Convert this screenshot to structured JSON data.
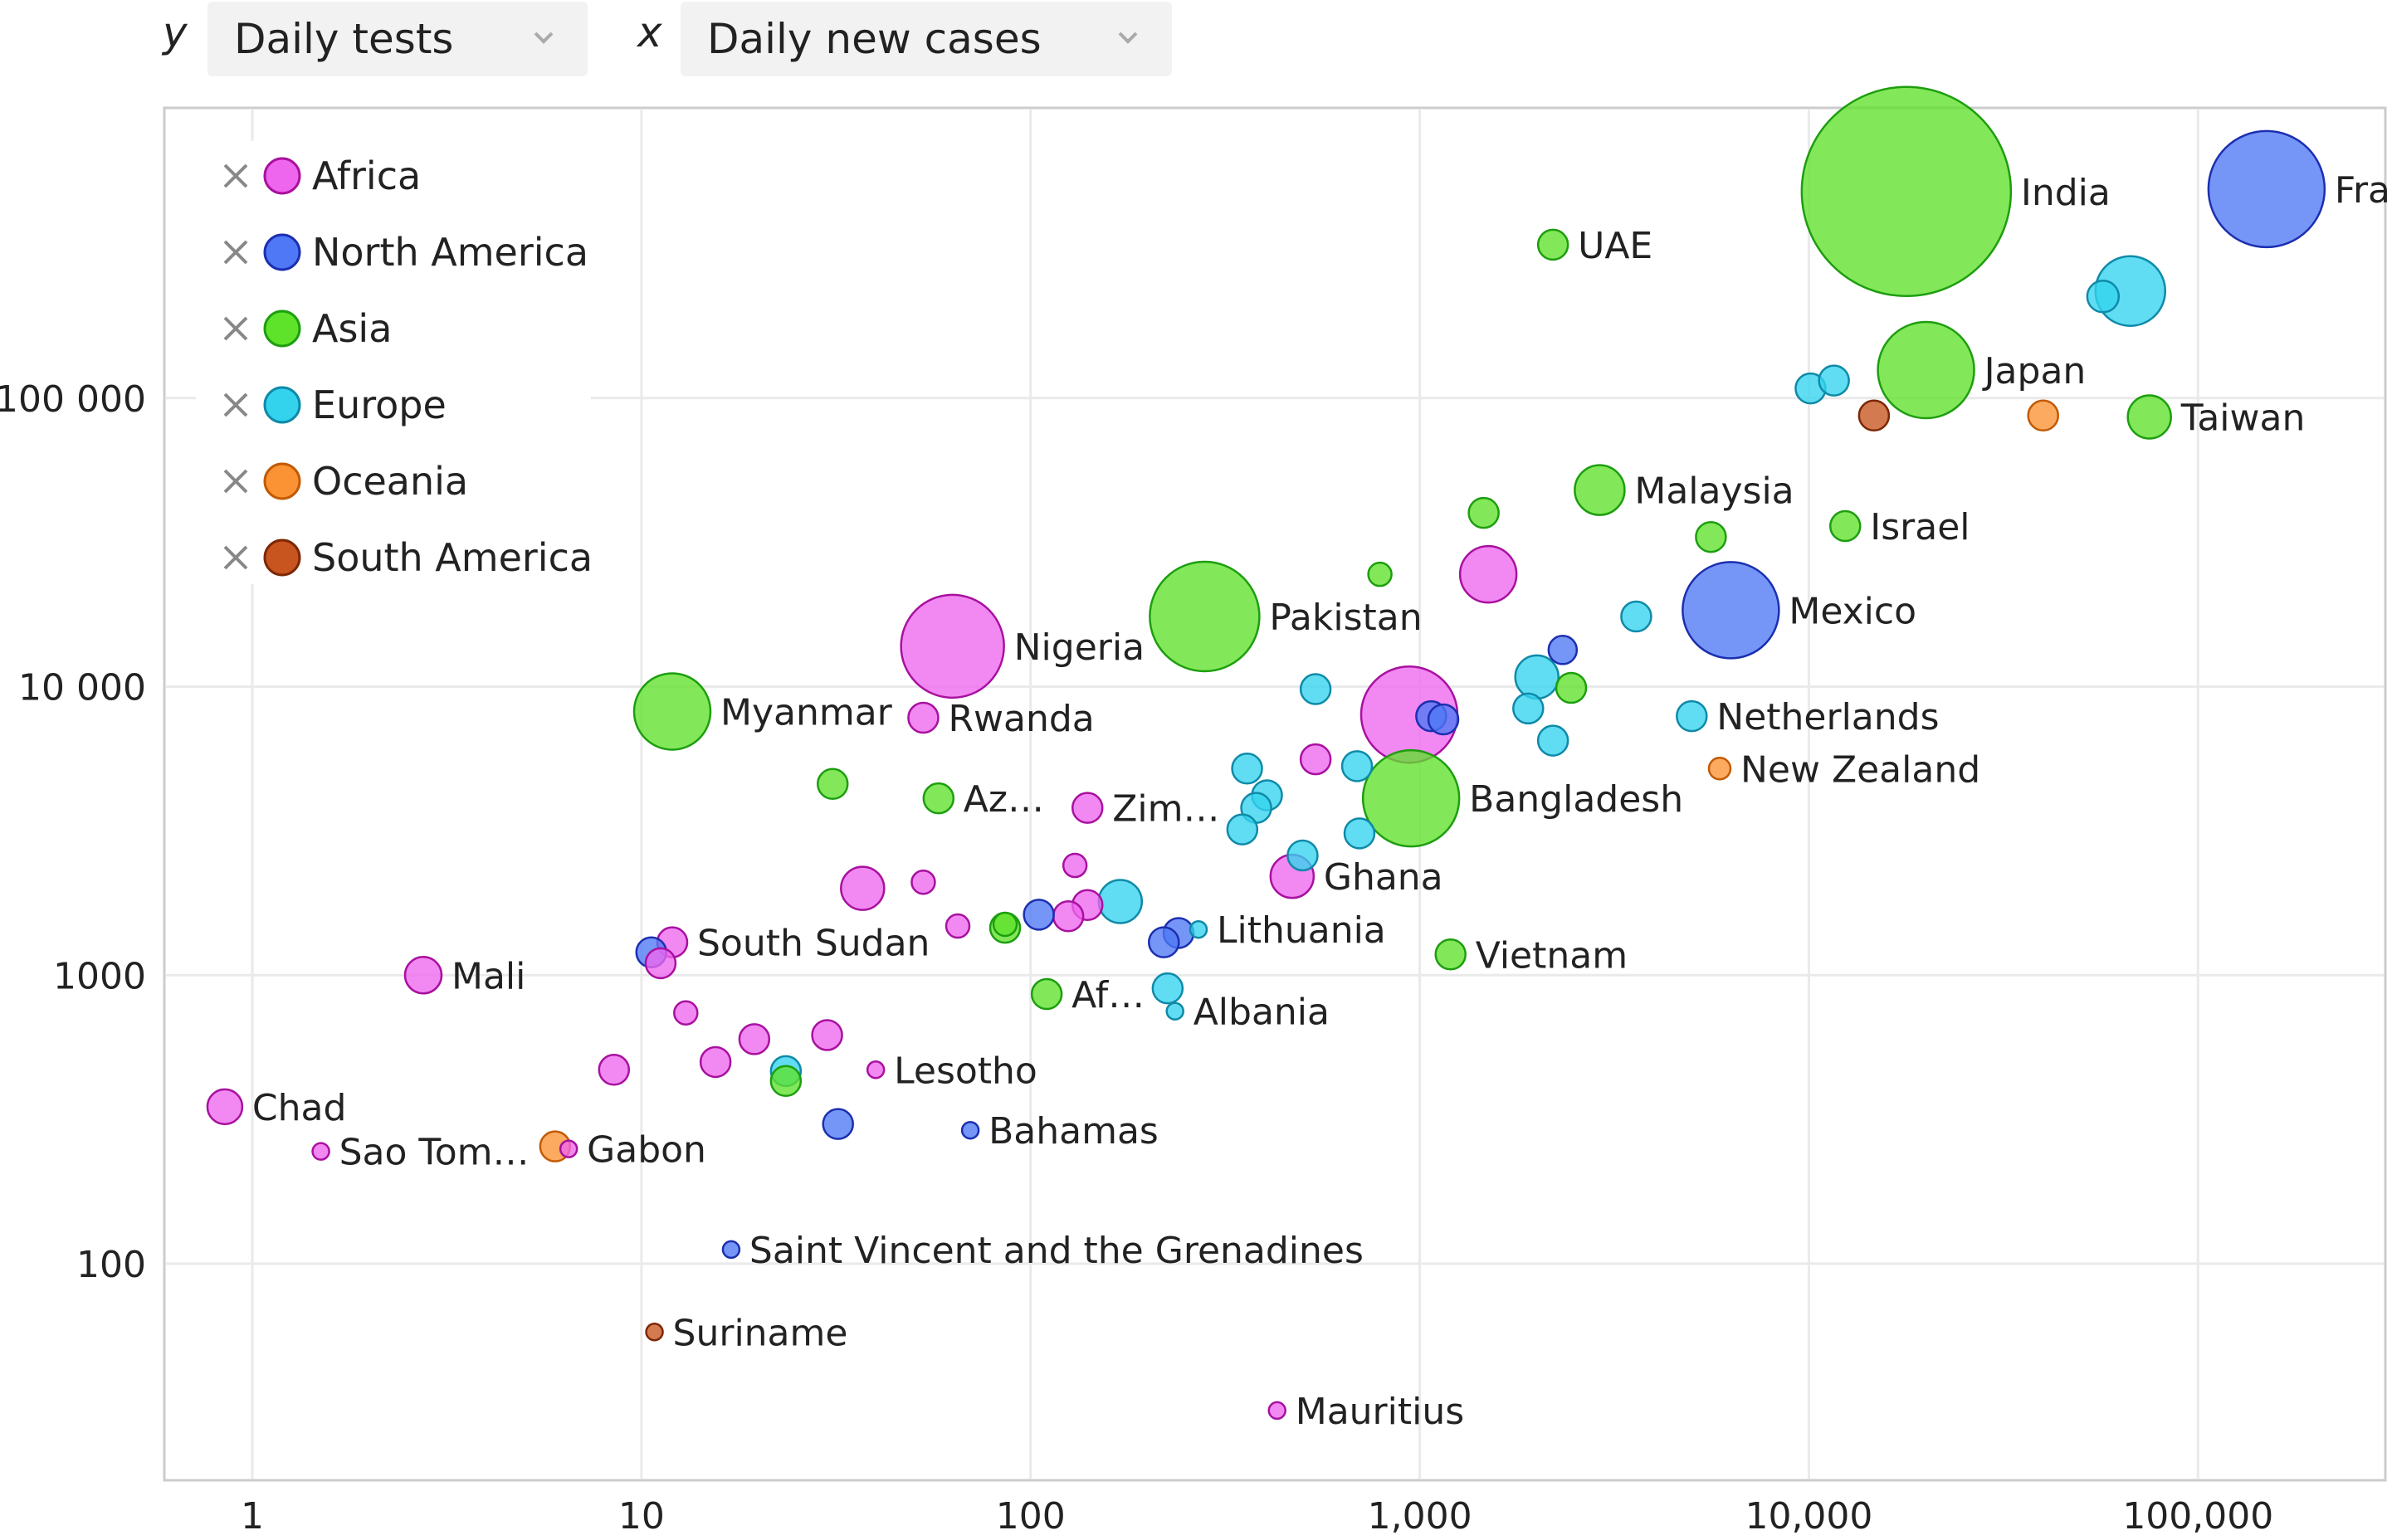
{
  "controls": {
    "y_axis": {
      "symbol": "y",
      "selected": "Daily tests"
    },
    "x_axis": {
      "symbol": "x",
      "selected": "Daily new cases"
    }
  },
  "chart_data": {
    "type": "scatter",
    "xscale": "log",
    "yscale": "log",
    "xlim": [
      0.6,
      300000
    ],
    "ylim": [
      18,
      1000000
    ],
    "grid": true,
    "legend_position": "top-left",
    "x_ticks": [
      {
        "value": 1,
        "label": "1"
      },
      {
        "value": 10,
        "label": "10"
      },
      {
        "value": 100,
        "label": "100"
      },
      {
        "value": 1000,
        "label": "1,000"
      },
      {
        "value": 10000,
        "label": "10,000"
      },
      {
        "value": 100000,
        "label": "100,000"
      }
    ],
    "y_ticks": [
      {
        "value": 100,
        "label": "100"
      },
      {
        "value": 1000,
        "label": "1000"
      },
      {
        "value": 10000,
        "label": "10 000"
      },
      {
        "value": 100000,
        "label": "100 000"
      }
    ],
    "legend": [
      {
        "name": "Africa",
        "color": "#ee66ee",
        "stroke": "#a8119f"
      },
      {
        "name": "North America",
        "color": "#4e78f5",
        "stroke": "#1c2fb0"
      },
      {
        "name": "Asia",
        "color": "#5fe22a",
        "stroke": "#1d9e0f"
      },
      {
        "name": "Europe",
        "color": "#33d3ee",
        "stroke": "#0f8aa8"
      },
      {
        "name": "Oceania",
        "color": "#fb9233",
        "stroke": "#c25a05"
      },
      {
        "name": "South America",
        "color": "#c85420",
        "stroke": "#7c2804"
      }
    ],
    "points": [
      {
        "x": 17800,
        "y": 520000,
        "r": 126,
        "c": 2,
        "label": "India"
      },
      {
        "x": 150000,
        "y": 530000,
        "r": 70,
        "c": 1,
        "label": "France"
      },
      {
        "x": 2200,
        "y": 340000,
        "r": 18,
        "c": 2,
        "label": "UAE"
      },
      {
        "x": 67000,
        "y": 235000,
        "r": 42,
        "c": 3
      },
      {
        "x": 57000,
        "y": 225000,
        "r": 19,
        "c": 3
      },
      {
        "x": 20000,
        "y": 125000,
        "r": 58,
        "c": 2,
        "label": "Japan"
      },
      {
        "x": 10100,
        "y": 108000,
        "r": 18,
        "c": 3
      },
      {
        "x": 11600,
        "y": 115000,
        "r": 18,
        "c": 3
      },
      {
        "x": 14700,
        "y": 87000,
        "r": 18,
        "c": 5
      },
      {
        "x": 40000,
        "y": 87000,
        "r": 18,
        "c": 4
      },
      {
        "x": 75000,
        "y": 86000,
        "r": 26,
        "c": 2,
        "label": "Taiwan"
      },
      {
        "x": 2900,
        "y": 48000,
        "r": 30,
        "c": 2,
        "label": "Malaysia"
      },
      {
        "x": 1460,
        "y": 40000,
        "r": 18,
        "c": 2
      },
      {
        "x": 12400,
        "y": 36000,
        "r": 18,
        "c": 2,
        "label": "Israel"
      },
      {
        "x": 5600,
        "y": 33000,
        "r": 18,
        "c": 2
      },
      {
        "x": 790,
        "y": 24500,
        "r": 14,
        "c": 2
      },
      {
        "x": 1500,
        "y": 24500,
        "r": 34,
        "c": 0
      },
      {
        "x": 280,
        "y": 17500,
        "r": 66,
        "c": 2,
        "label": "Pakistan"
      },
      {
        "x": 6300,
        "y": 18400,
        "r": 58,
        "c": 1,
        "label": "Mexico"
      },
      {
        "x": 3600,
        "y": 17500,
        "r": 18,
        "c": 3
      },
      {
        "x": 63,
        "y": 13800,
        "r": 62,
        "c": 0,
        "label": "Nigeria"
      },
      {
        "x": 2330,
        "y": 13400,
        "r": 17,
        "c": 1
      },
      {
        "x": 2000,
        "y": 10800,
        "r": 26,
        "c": 3
      },
      {
        "x": 2450,
        "y": 9900,
        "r": 18,
        "c": 2
      },
      {
        "x": 540,
        "y": 9800,
        "r": 18,
        "c": 3
      },
      {
        "x": 940,
        "y": 8000,
        "r": 58,
        "c": 0
      },
      {
        "x": 1070,
        "y": 7900,
        "r": 18,
        "c": 1
      },
      {
        "x": 1150,
        "y": 7700,
        "r": 18,
        "c": 1
      },
      {
        "x": 1900,
        "y": 8400,
        "r": 18,
        "c": 3
      },
      {
        "x": 12,
        "y": 8200,
        "r": 46,
        "c": 2,
        "label": "Myanmar"
      },
      {
        "x": 53,
        "y": 7800,
        "r": 18,
        "c": 0,
        "label": "Rwanda"
      },
      {
        "x": 5000,
        "y": 7900,
        "r": 18,
        "c": 3,
        "label": "Netherlands"
      },
      {
        "x": 2200,
        "y": 6500,
        "r": 18,
        "c": 3
      },
      {
        "x": 5900,
        "y": 5200,
        "r": 13,
        "c": 4,
        "label": "New Zealand"
      },
      {
        "x": 540,
        "y": 5600,
        "r": 18,
        "c": 0
      },
      {
        "x": 690,
        "y": 5300,
        "r": 18,
        "c": 3
      },
      {
        "x": 360,
        "y": 5200,
        "r": 18,
        "c": 3
      },
      {
        "x": 31,
        "y": 4600,
        "r": 18,
        "c": 2
      },
      {
        "x": 58,
        "y": 4100,
        "r": 18,
        "c": 2,
        "label": "Az…"
      },
      {
        "x": 950,
        "y": 4100,
        "r": 58,
        "c": 2,
        "label": "Bangladesh"
      },
      {
        "x": 140,
        "y": 3800,
        "r": 18,
        "c": 0,
        "label": "Zim…"
      },
      {
        "x": 405,
        "y": 4200,
        "r": 18,
        "c": 3
      },
      {
        "x": 380,
        "y": 3800,
        "r": 18,
        "c": 3
      },
      {
        "x": 350,
        "y": 3200,
        "r": 18,
        "c": 3
      },
      {
        "x": 700,
        "y": 3100,
        "r": 18,
        "c": 3
      },
      {
        "x": 500,
        "y": 2600,
        "r": 18,
        "c": 3
      },
      {
        "x": 130,
        "y": 2400,
        "r": 14,
        "c": 0
      },
      {
        "x": 470,
        "y": 2200,
        "r": 26,
        "c": 0,
        "label": "Ghana"
      },
      {
        "x": 37,
        "y": 2000,
        "r": 26,
        "c": 0
      },
      {
        "x": 53,
        "y": 2100,
        "r": 14,
        "c": 0
      },
      {
        "x": 170,
        "y": 1800,
        "r": 26,
        "c": 3
      },
      {
        "x": 140,
        "y": 1750,
        "r": 18,
        "c": 0
      },
      {
        "x": 125,
        "y": 1600,
        "r": 18,
        "c": 0
      },
      {
        "x": 105,
        "y": 1620,
        "r": 18,
        "c": 1
      },
      {
        "x": 65,
        "y": 1480,
        "r": 14,
        "c": 0
      },
      {
        "x": 86,
        "y": 1460,
        "r": 18,
        "c": 2
      },
      {
        "x": 86,
        "y": 1500,
        "r": 14,
        "c": 2
      },
      {
        "x": 240,
        "y": 1400,
        "r": 18,
        "c": 1
      },
      {
        "x": 220,
        "y": 1300,
        "r": 18,
        "c": 1
      },
      {
        "x": 270,
        "y": 1440,
        "r": 10,
        "c": 3,
        "label": "Lithuania"
      },
      {
        "x": 12,
        "y": 1300,
        "r": 18,
        "c": 0,
        "label": "South Sudan"
      },
      {
        "x": 10.6,
        "y": 1200,
        "r": 18,
        "c": 1
      },
      {
        "x": 11.2,
        "y": 1100,
        "r": 18,
        "c": 0
      },
      {
        "x": 2.75,
        "y": 1000,
        "r": 22,
        "c": 0,
        "label": "Mali"
      },
      {
        "x": 1200,
        "y": 1180,
        "r": 18,
        "c": 2,
        "label": "Vietnam"
      },
      {
        "x": 110,
        "y": 860,
        "r": 18,
        "c": 2,
        "label": "Af…"
      },
      {
        "x": 225,
        "y": 900,
        "r": 18,
        "c": 3
      },
      {
        "x": 235,
        "y": 750,
        "r": 10,
        "c": 3,
        "label": "Albania"
      },
      {
        "x": 13,
        "y": 740,
        "r": 14,
        "c": 0
      },
      {
        "x": 19.5,
        "y": 600,
        "r": 18,
        "c": 0
      },
      {
        "x": 30,
        "y": 620,
        "r": 18,
        "c": 0
      },
      {
        "x": 15.5,
        "y": 500,
        "r": 18,
        "c": 0
      },
      {
        "x": 8.5,
        "y": 470,
        "r": 18,
        "c": 0
      },
      {
        "x": 40,
        "y": 470,
        "r": 10,
        "c": 0,
        "label": "Lesotho"
      },
      {
        "x": 23.5,
        "y": 465,
        "r": 18,
        "c": 3
      },
      {
        "x": 23.5,
        "y": 430,
        "r": 18,
        "c": 2
      },
      {
        "x": 0.85,
        "y": 350,
        "r": 21,
        "c": 0,
        "label": "Chad"
      },
      {
        "x": 32,
        "y": 305,
        "r": 18,
        "c": 1
      },
      {
        "x": 70,
        "y": 290,
        "r": 10,
        "c": 1,
        "label": "Bahamas"
      },
      {
        "x": 6,
        "y": 255,
        "r": 18,
        "c": 4
      },
      {
        "x": 6.5,
        "y": 250,
        "r": 10,
        "c": 0,
        "label": "Gabon"
      },
      {
        "x": 1.5,
        "y": 245,
        "r": 10,
        "c": 0,
        "label": "Sao Tom…"
      },
      {
        "x": 17,
        "y": 112,
        "r": 10,
        "c": 1,
        "label": "Saint Vincent and the Grenadines"
      },
      {
        "x": 10.8,
        "y": 58,
        "r": 10,
        "c": 5,
        "label": "Suriname"
      },
      {
        "x": 430,
        "y": 31,
        "r": 10,
        "c": 0,
        "label": "Mauritius"
      }
    ]
  }
}
